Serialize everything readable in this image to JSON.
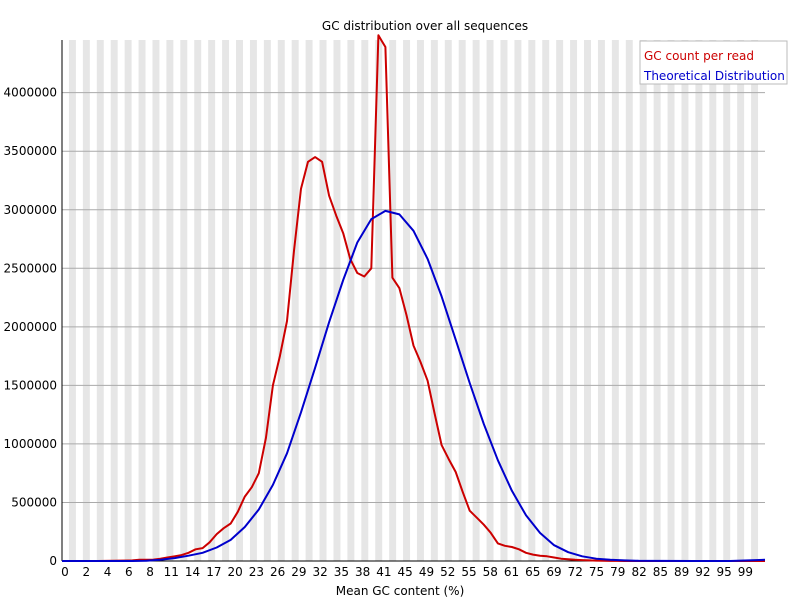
{
  "chart_data": {
    "type": "line",
    "title": "GC distribution over all sequences",
    "xlabel": "Mean GC content (%)",
    "ylabel": "",
    "xlim": [
      0,
      100
    ],
    "ylim": [
      0,
      4450000
    ],
    "grid": true,
    "legend_position": "top-right",
    "x_tick_labels": [
      "0",
      "2",
      "4",
      "6",
      "8",
      "11",
      "14",
      "17",
      "20",
      "23",
      "26",
      "29",
      "32",
      "35",
      "38",
      "41",
      "45",
      "49",
      "52",
      "55",
      "58",
      "61",
      "65",
      "69",
      "72",
      "75",
      "79",
      "82",
      "85",
      "89",
      "92",
      "95",
      "99"
    ],
    "y_ticks": [
      0,
      500000,
      1000000,
      1500000,
      2000000,
      2500000,
      3000000,
      3500000,
      4000000
    ],
    "series": [
      {
        "name": "GC count per read",
        "color": "#cc0000",
        "x": [
          0,
          5,
          10,
          11,
          12,
          13,
          14,
          15,
          16,
          17,
          18,
          19,
          20,
          21,
          22,
          23,
          24,
          25,
          26,
          27,
          28,
          29,
          30,
          31,
          32,
          33,
          34,
          35,
          36,
          37,
          38,
          39,
          40,
          41,
          42,
          43,
          44,
          45,
          46,
          47,
          48,
          49,
          50,
          51,
          52,
          53,
          54,
          55,
          56,
          57,
          58,
          59,
          60,
          61,
          62,
          63,
          64,
          65,
          66,
          67,
          68,
          69,
          70,
          71,
          72,
          73,
          74,
          75,
          76,
          77,
          78,
          79,
          80,
          85,
          90,
          95,
          100
        ],
        "y": [
          0,
          0,
          5000,
          10000,
          10000,
          12000,
          20000,
          30000,
          40000,
          50000,
          70000,
          100000,
          110000,
          160000,
          230000,
          280000,
          320000,
          420000,
          550000,
          630000,
          750000,
          1050000,
          1500000,
          1750000,
          2050000,
          2650000,
          3180000,
          3410000,
          3450000,
          3410000,
          3120000,
          2950000,
          2800000,
          2580000,
          2460000,
          2430000,
          2500000,
          4490000,
          4390000,
          2420000,
          2330000,
          2100000,
          1840000,
          1700000,
          1540000,
          1260000,
          990000,
          870000,
          760000,
          590000,
          430000,
          370000,
          310000,
          240000,
          150000,
          130000,
          120000,
          100000,
          70000,
          55000,
          45000,
          40000,
          30000,
          20000,
          15000,
          10000,
          8000,
          5000,
          3000,
          2000,
          1000,
          500,
          0,
          0,
          0,
          0,
          0
        ]
      },
      {
        "name": "Theoretical Distribution",
        "color": "#0000cc",
        "x": [
          0,
          10,
          12,
          14,
          16,
          18,
          20,
          22,
          24,
          26,
          28,
          30,
          32,
          34,
          36,
          38,
          40,
          42,
          44,
          46,
          48,
          50,
          52,
          54,
          56,
          58,
          60,
          62,
          64,
          66,
          68,
          70,
          72,
          74,
          76,
          78,
          80,
          82,
          85,
          90,
          95,
          100
        ],
        "y": [
          0,
          0,
          2000,
          10000,
          25000,
          45000,
          70000,
          115000,
          180000,
          290000,
          440000,
          650000,
          920000,
          1270000,
          1650000,
          2040000,
          2400000,
          2720000,
          2920000,
          2990000,
          2960000,
          2820000,
          2580000,
          2260000,
          1890000,
          1520000,
          1170000,
          860000,
          600000,
          390000,
          240000,
          135000,
          75000,
          40000,
          20000,
          10000,
          5000,
          2000,
          500,
          0,
          0,
          10000
        ]
      }
    ]
  }
}
